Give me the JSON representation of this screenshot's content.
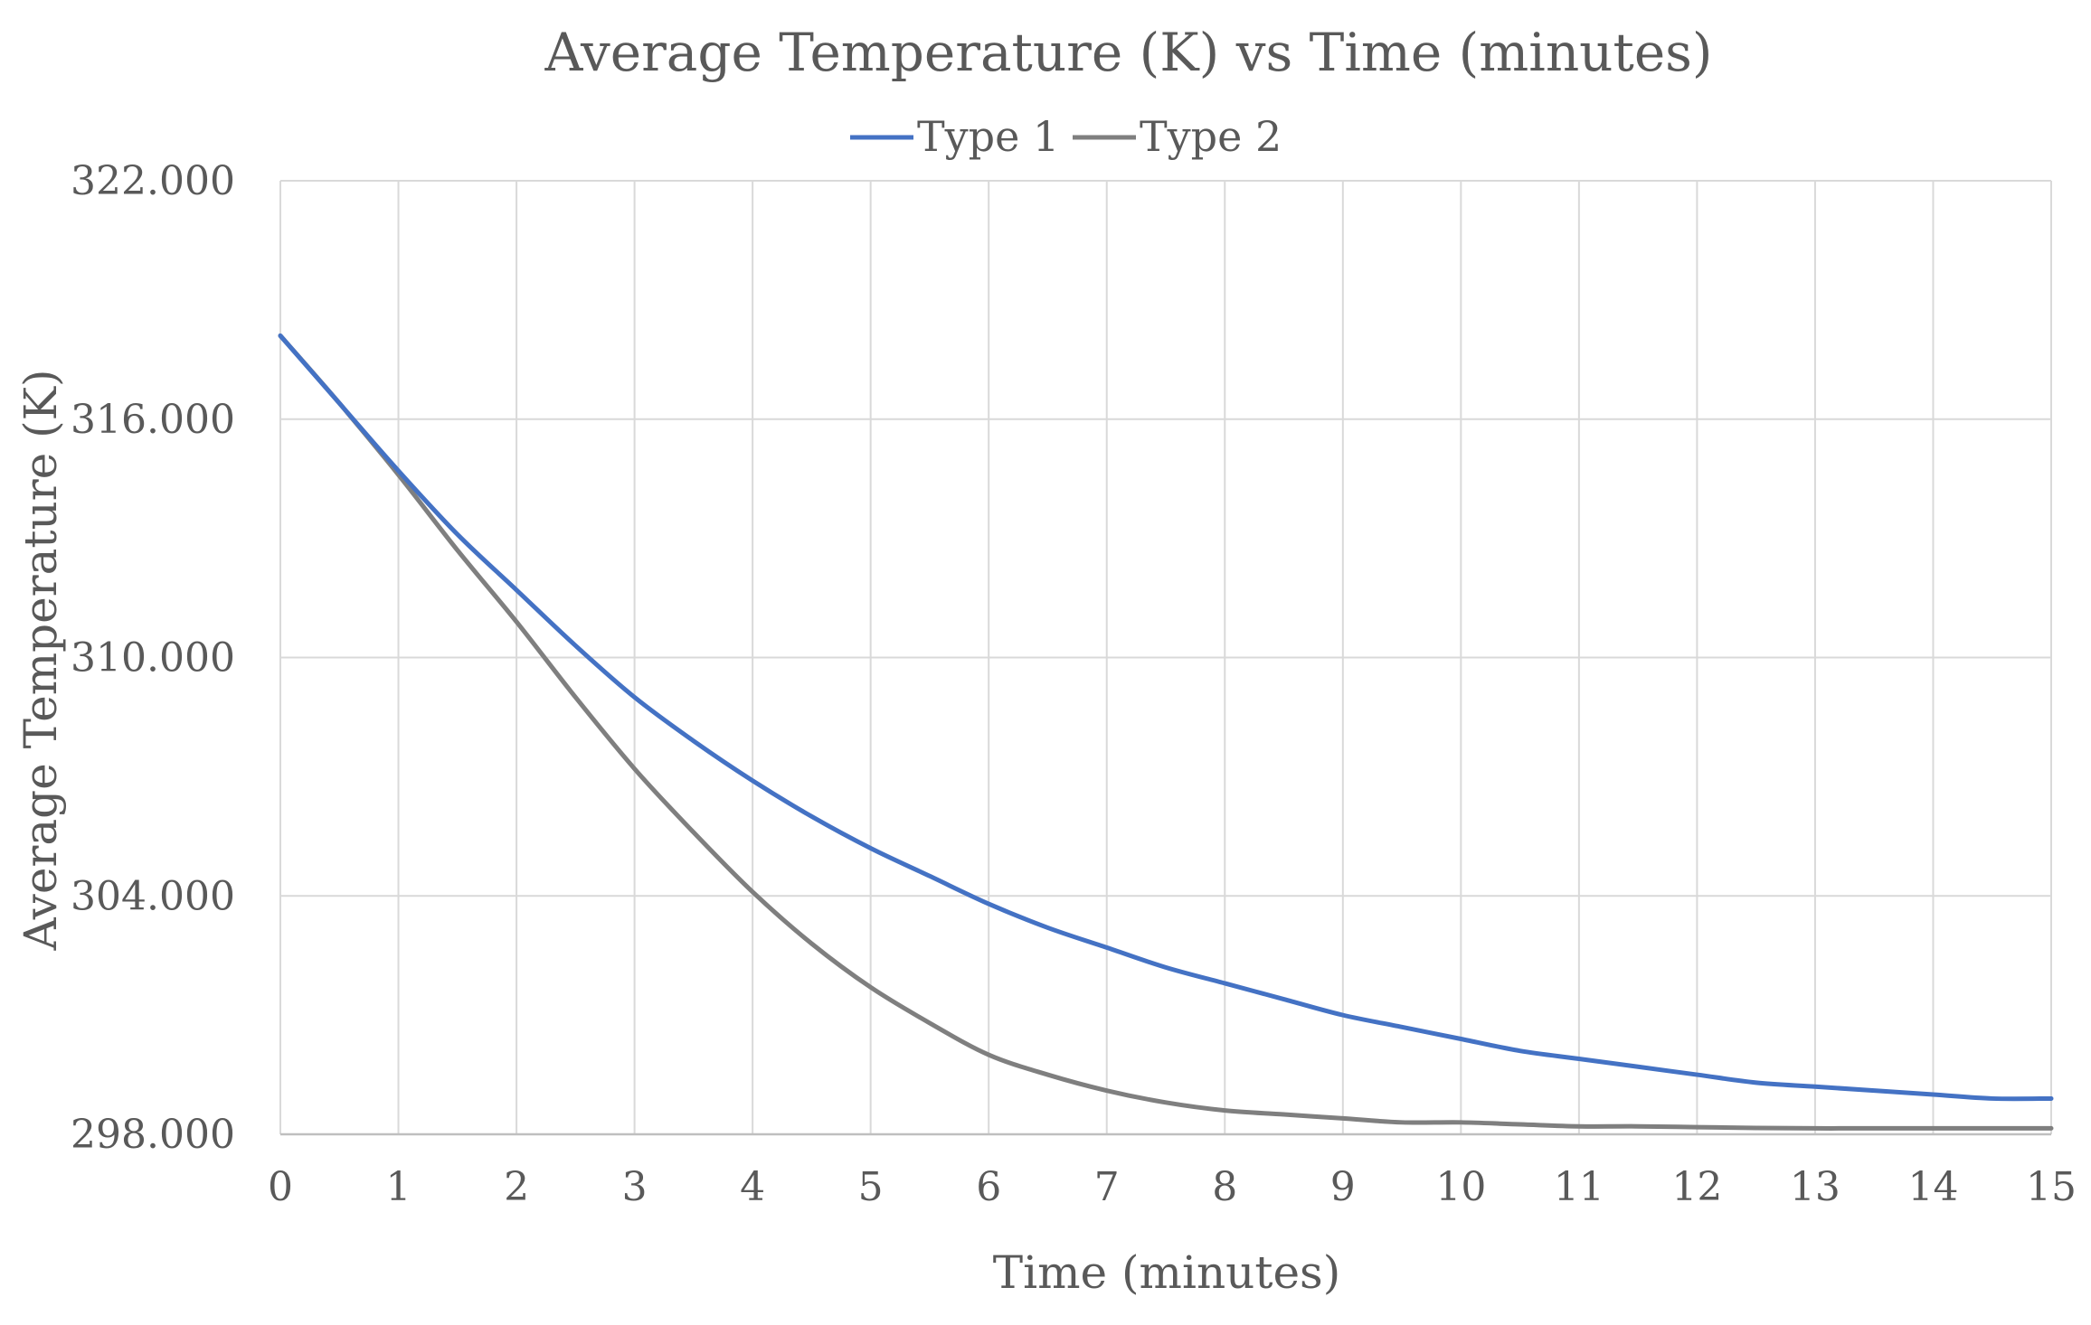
{
  "chart_data": {
    "type": "line",
    "title": "Average Temperature (K) vs Time (minutes)",
    "xlabel": "Time (minutes)",
    "ylabel": "Average Temperature (K)",
    "xlim": [
      0,
      15
    ],
    "ylim": [
      298,
      322
    ],
    "x_ticks": [
      "0",
      "1",
      "2",
      "3",
      "4",
      "5",
      "6",
      "7",
      "8",
      "9",
      "10",
      "11",
      "12",
      "13",
      "14",
      "15"
    ],
    "y_ticks": [
      "298.000",
      "304.000",
      "310.000",
      "316.000",
      "322.000"
    ],
    "y_tick_values": [
      298,
      304,
      310,
      316,
      322
    ],
    "grid": true,
    "legend_position": "top-center",
    "x": [
      0,
      0.5,
      1,
      1.5,
      2,
      2.5,
      3,
      3.5,
      4,
      4.5,
      5,
      5.5,
      6,
      6.5,
      7,
      7.5,
      8,
      8.5,
      9,
      9.5,
      10,
      10.5,
      11,
      11.5,
      12,
      12.5,
      13,
      13.5,
      14,
      14.5,
      15
    ],
    "series": [
      {
        "name": "Type 1",
        "color": "#4472C4",
        "values": [
          318.1,
          316.4,
          314.7,
          313.1,
          311.7,
          310.3,
          309.0,
          307.9,
          306.9,
          306.0,
          305.2,
          304.5,
          303.8,
          303.2,
          302.7,
          302.2,
          301.8,
          301.4,
          301.0,
          300.7,
          300.4,
          300.1,
          299.9,
          299.7,
          299.5,
          299.3,
          299.2,
          299.1,
          299.0,
          298.9,
          298.9
        ]
      },
      {
        "name": "Type 2",
        "color": "#7F7F7F",
        "values": [
          318.1,
          316.4,
          314.6,
          312.7,
          310.9,
          309.0,
          307.2,
          305.6,
          304.1,
          302.8,
          301.7,
          300.8,
          300.0,
          299.5,
          299.1,
          298.8,
          298.6,
          298.5,
          298.4,
          298.3,
          298.3,
          298.25,
          298.2,
          298.2,
          298.18,
          298.16,
          298.15,
          298.15,
          298.15,
          298.15,
          298.15
        ]
      }
    ]
  }
}
